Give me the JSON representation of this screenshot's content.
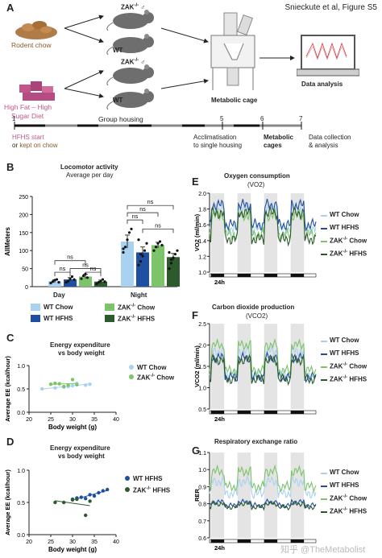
{
  "header": {
    "citation": "Snieckute et al, Figure S5"
  },
  "panel_a": {
    "letter": "A",
    "diet1": "Rodent chow",
    "diet2_line1": "High Fat – High",
    "diet2_line2": "Sugar Diet",
    "zak_label": "ZAK",
    "ko_sup": "-/-",
    "male_symbol": "♂",
    "wt_label": "WT",
    "cage_label": "Metabolic cage",
    "analysis_label": "Data analysis",
    "timeline_ticks": [
      "1",
      "5",
      "6",
      "7"
    ],
    "group_housing": "Group housing",
    "hfhs_start": "HFHS start",
    "or_text": "or",
    "kept_on_chow": "kept on chow",
    "acclim_line1": "Acclimatisation",
    "acclim_line2": "to single housing",
    "metabolic_line1": "Metabolic",
    "metabolic_line2": "cages",
    "collection_line1": "Data collection",
    "collection_line2": "& analysis",
    "colors": {
      "chow": "#8a5a2b",
      "hfhs": "#c2568a"
    }
  },
  "panel_b": {
    "letter": "B",
    "legend": {
      "wt_chow": "WT Chow",
      "wt_hfhs": "WT HFHS",
      "zak_chow": "ZAK",
      "zak_chow_suffix": "Chow",
      "zak_hfhs": "ZAK",
      "zak_hfhs_suffix": "HFHS",
      "ko_sup": "-/-"
    },
    "colors": {
      "wt_chow": "#a9d1f0",
      "wt_hfhs": "#1f4fa0",
      "zak_chow": "#7cc36a",
      "zak_hfhs": "#2d5a2d"
    },
    "ns_label": "ns"
  },
  "panel_c": {
    "letter": "C",
    "legend_wt": "WT Chow",
    "legend_zak": "ZAK",
    "legend_zak_suffix": "Chow",
    "ko_sup": "-/-",
    "colors": {
      "wt": "#a9d1f0",
      "zak": "#7cc36a"
    }
  },
  "panel_d": {
    "letter": "D",
    "legend_wt": "WT HFHS",
    "legend_zak": "ZAK",
    "legend_zak_suffix": "HFHS",
    "ko_sup": "-/-",
    "colors": {
      "wt": "#1f4fa0",
      "zak": "#2d5a2d"
    }
  },
  "panel_e": {
    "letter": "E",
    "legend": [
      "WT Chow",
      "WT HFHS",
      "ZAK",
      "Chow",
      "ZAK",
      "HFHS"
    ],
    "ko_sup": "-/-"
  },
  "panel_f": {
    "letter": "F",
    "legend": [
      "WT Chow",
      "WT HFHS",
      "ZAK",
      "Chow",
      "ZAK",
      "HFHS"
    ],
    "ko_sup": "-/-"
  },
  "panel_g": {
    "letter": "G",
    "legend": [
      "WT Chow",
      "WT HFHS",
      "ZAK",
      "Chow",
      "ZAK",
      "HFHS"
    ],
    "ko_sup": "-/-"
  },
  "watermark": "知乎 @TheMetabolist",
  "chart_data": [
    {
      "type": "bar",
      "title": "Locomotor activity",
      "subtitle": "Average per day",
      "ylabel": "AllMeters",
      "categories": [
        "Day",
        "Night"
      ],
      "ylim": [
        0,
        250
      ],
      "yticks": [
        0,
        50,
        100,
        150,
        200,
        250
      ],
      "series": [
        {
          "name": "WT Chow",
          "values": [
            15,
            125
          ],
          "errors": [
            4,
            18
          ],
          "points": [
            [
              10,
              14,
              18,
              20,
              12
            ],
            [
              95,
              110,
              130,
              150,
              160,
              105
            ]
          ]
        },
        {
          "name": "WT HFHS",
          "values": [
            20,
            95
          ],
          "errors": [
            5,
            15
          ],
          "points": [
            [
              12,
              15,
              22,
              28,
              20
            ],
            [
              60,
              70,
              85,
              100,
              120,
              130,
              90
            ]
          ]
        },
        {
          "name": "ZAK-/- Chow",
          "values": [
            28,
            115
          ],
          "errors": [
            6,
            8
          ],
          "points": [
            [
              22,
              30,
              35,
              25
            ],
            [
              100,
              110,
              120,
              125,
              115
            ]
          ]
        },
        {
          "name": "ZAK-/- HFHS",
          "values": [
            14,
            82
          ],
          "errors": [
            4,
            10
          ],
          "points": [
            [
              8,
              12,
              16,
              20,
              14
            ],
            [
              50,
              65,
              80,
              90,
              100,
              95,
              75
            ]
          ]
        }
      ],
      "significance": [
        "ns",
        "ns",
        "ns",
        "ns",
        "ns",
        "ns",
        "ns",
        "ns"
      ]
    },
    {
      "type": "scatter",
      "title": "Energy expenditure",
      "subtitle": "vs body weight",
      "xlabel": "Body weight (g)",
      "ylabel": "Average EE (kcal/hour)",
      "xlim": [
        20,
        40
      ],
      "ylim": [
        0,
        1.0
      ],
      "xticks": [
        20,
        25,
        30,
        35,
        40
      ],
      "yticks": [
        0.0,
        0.5,
        1.0
      ],
      "series": [
        {
          "name": "WT Chow",
          "points": [
            [
              23,
              0.5
            ],
            [
              26,
              0.52
            ],
            [
              29,
              0.55
            ],
            [
              30,
              0.57
            ],
            [
              31,
              0.62
            ],
            [
              33,
              0.58
            ],
            [
              34,
              0.6
            ],
            [
              28,
              0.54
            ]
          ]
        },
        {
          "name": "ZAK-/- Chow",
          "points": [
            [
              25,
              0.6
            ],
            [
              26,
              0.62
            ],
            [
              27,
              0.61
            ],
            [
              28,
              0.55
            ],
            [
              29,
              0.58
            ],
            [
              30,
              0.7
            ],
            [
              31,
              0.59
            ]
          ]
        }
      ]
    },
    {
      "type": "scatter",
      "title": "Energy expenditure",
      "subtitle": "vs body weight",
      "xlabel": "Body weight (g)",
      "ylabel": "Average EE (kcal/hour)",
      "xlim": [
        20,
        40
      ],
      "ylim": [
        0,
        1.0
      ],
      "xticks": [
        20,
        25,
        30,
        35,
        40
      ],
      "yticks": [
        0.0,
        0.5,
        1.0
      ],
      "series": [
        {
          "name": "WT HFHS",
          "points": [
            [
              30,
              0.55
            ],
            [
              31,
              0.57
            ],
            [
              32,
              0.58
            ],
            [
              33,
              0.56
            ],
            [
              34,
              0.62
            ],
            [
              35,
              0.6
            ],
            [
              36,
              0.65
            ],
            [
              37,
              0.68
            ],
            [
              38,
              0.7
            ]
          ]
        },
        {
          "name": "ZAK-/- HFHS",
          "points": [
            [
              26,
              0.5
            ],
            [
              28,
              0.5
            ],
            [
              30,
              0.54
            ],
            [
              31,
              0.55
            ],
            [
              33,
              0.3
            ],
            [
              34,
              0.52
            ]
          ]
        }
      ]
    },
    {
      "type": "line",
      "title": "Oxygen consumption",
      "subtitle": "(VO2)",
      "ylabel": "VO2 (ml/min)",
      "xlabel": "24h",
      "ylim": [
        1.0,
        2.0
      ],
      "yticks": [
        1.0,
        1.2,
        1.4,
        1.6,
        1.8,
        2.0
      ],
      "days": 4,
      "series": [
        {
          "name": "WT Chow",
          "day_level": 1.55,
          "night_level": 1.8,
          "noise": 0.05
        },
        {
          "name": "WT HFHS",
          "day_level": 1.6,
          "night_level": 1.85,
          "noise": 0.05
        },
        {
          "name": "ZAK-/- Chow",
          "day_level": 1.48,
          "night_level": 1.72,
          "noise": 0.05
        },
        {
          "name": "ZAK-/- HFHS",
          "day_level": 1.42,
          "night_level": 1.75,
          "noise": 0.05
        }
      ]
    },
    {
      "type": "line",
      "title": "Carbon dioxide production",
      "subtitle": "(VCO2)",
      "ylabel": "VCO2 (ml/min)",
      "xlabel": "24h",
      "ylim": [
        0.5,
        2.5
      ],
      "yticks": [
        0.5,
        1.0,
        1.5,
        2.0,
        2.5
      ],
      "days": 4,
      "series": [
        {
          "name": "WT Chow",
          "day_level": 1.3,
          "night_level": 1.85,
          "noise": 0.08
        },
        {
          "name": "WT HFHS",
          "day_level": 1.25,
          "night_level": 1.7,
          "noise": 0.08
        },
        {
          "name": "ZAK-/- Chow",
          "day_level": 1.4,
          "night_level": 2.0,
          "noise": 0.08
        },
        {
          "name": "ZAK-/- HFHS",
          "day_level": 1.2,
          "night_level": 1.65,
          "noise": 0.08
        }
      ]
    },
    {
      "type": "line",
      "title": "Respiratory exchange ratio",
      "ylabel": "RER",
      "xlabel": "24h",
      "ylim": [
        0.6,
        1.1
      ],
      "yticks": [
        0.6,
        0.7,
        0.8,
        0.9,
        1.0,
        1.1
      ],
      "days": 4,
      "series": [
        {
          "name": "WT Chow",
          "day_level": 0.86,
          "night_level": 0.93,
          "noise": 0.02
        },
        {
          "name": "WT HFHS",
          "day_level": 0.79,
          "night_level": 0.81,
          "noise": 0.01
        },
        {
          "name": "ZAK-/- Chow",
          "day_level": 0.9,
          "night_level": 0.99,
          "noise": 0.02
        },
        {
          "name": "ZAK-/- HFHS",
          "day_level": 0.78,
          "night_level": 0.8,
          "noise": 0.01
        }
      ]
    }
  ]
}
